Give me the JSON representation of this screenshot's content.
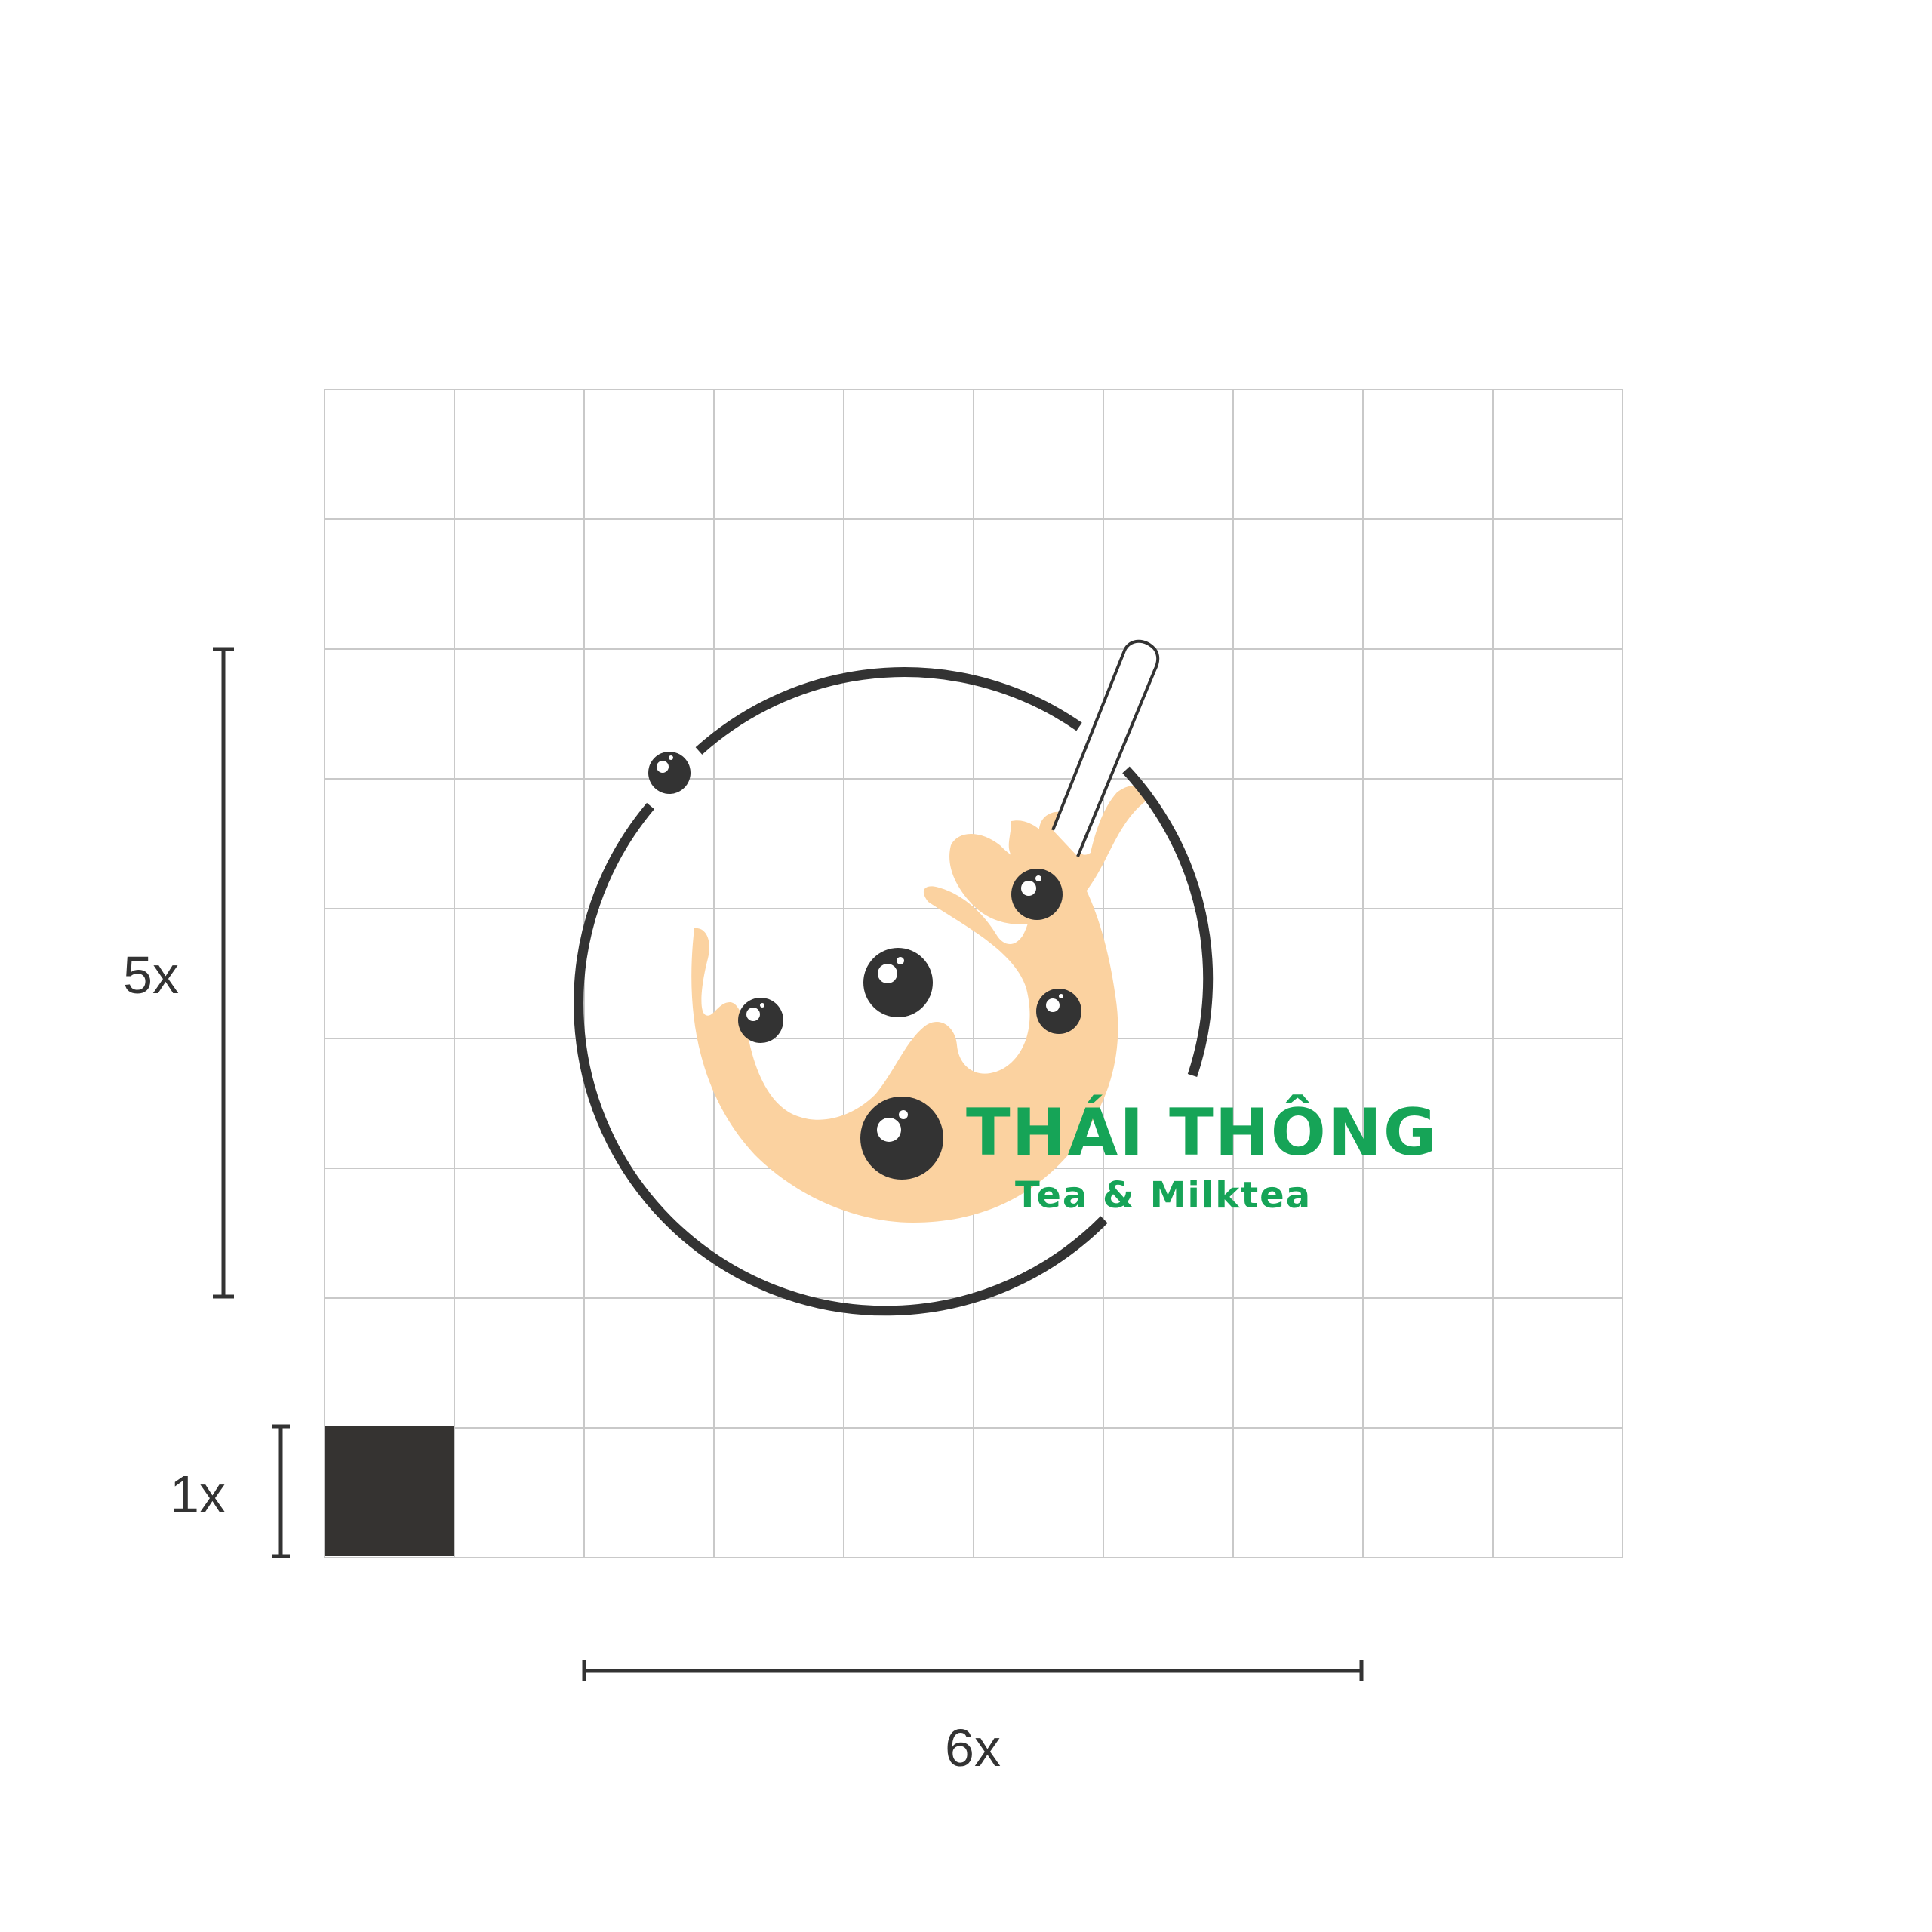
{
  "logo": {
    "brand_name": "THÁI THÔNG",
    "tagline": "Tea & Milktea"
  },
  "dimensions": {
    "height_label": "5x",
    "unit_label": "1x",
    "width_label": "6x"
  },
  "grid": {
    "columns": 10,
    "rows": 9
  },
  "colors": {
    "brand_green": "#16a457",
    "ink": "#333333",
    "milk_tea": "#fbd2a0",
    "grid_line": "#c9c9c9",
    "unit_block": "#353331"
  }
}
